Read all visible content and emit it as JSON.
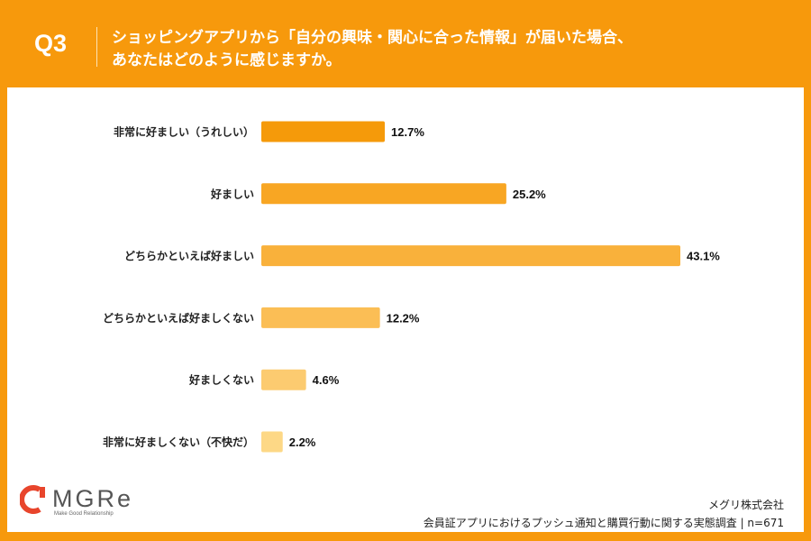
{
  "header": {
    "q_label": "Q3",
    "title_line1": "ショッピングアプリから「自分の興味・関心に合った情報」が届いた場合、",
    "title_line2": "あなたはどのように感じますか。"
  },
  "chart_data": {
    "type": "bar",
    "orientation": "horizontal",
    "categories": [
      "非常に好ましい（うれしい）",
      "好ましい",
      "どちらかといえば好ましい",
      "どちらかといえば好ましくない",
      "好ましくない",
      "非常に好ましくない（不快だ）"
    ],
    "values": [
      12.7,
      25.2,
      43.1,
      12.2,
      4.6,
      2.2
    ],
    "value_labels": [
      "12.7%",
      "25.2%",
      "43.1%",
      "12.2%",
      "4.6%",
      "2.2%"
    ],
    "colors": [
      "#F59A0A",
      "#F8A623",
      "#F9B13B",
      "#FBBE55",
      "#FCCB70",
      "#FDD886"
    ],
    "unit": "%",
    "grid": false
  },
  "footer": {
    "logo_text": "MGRe",
    "logo_tagline": "Make Good Relationship",
    "company": "メグリ株式会社",
    "source": "会員証アプリにおけるプッシュ通知と購買行動に関する実態調査 | n=671"
  },
  "colors": {
    "frame": "#F7990C",
    "logo_red": "#E8452C"
  }
}
